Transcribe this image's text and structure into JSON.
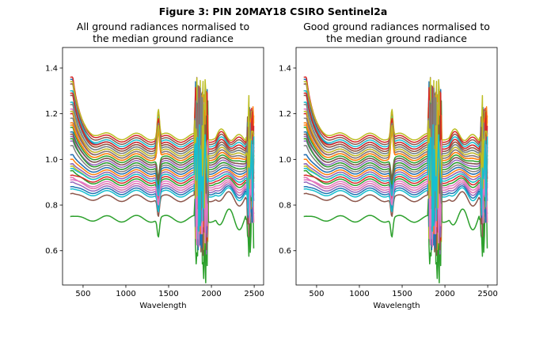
{
  "figure": {
    "title": "Figure 3: PIN 20MAY18 CSIRO Sentinel2a"
  },
  "chart_data": [
    {
      "type": "line",
      "title_lines": [
        "All ground radiances normalised to",
        "the median ground radiance"
      ],
      "xlabel": "Wavelength",
      "ylabel": "",
      "xlim": [
        260,
        2610
      ],
      "ylim": [
        0.45,
        1.49
      ],
      "xticks": [
        500,
        1000,
        1500,
        2000,
        2500
      ],
      "yticks": [
        0.6,
        0.8,
        1.0,
        1.2,
        1.4
      ],
      "grid": false,
      "legend": "none",
      "wavelength_range": [
        350,
        2500
      ],
      "bad_bands": [
        [
          1350,
          1410
        ],
        [
          1800,
          1960
        ],
        [
          2400,
          2500
        ]
      ],
      "series_count": 40,
      "series_offsets": [
        1.06,
        1.05,
        0.74,
        1.02,
        0.97,
        1.08,
        0.95,
        0.93,
        0.88,
        1.04,
        0.99,
        1.01,
        0.9,
        1.09,
        0.87,
        0.83,
        1.03,
        0.96,
        0.92,
        1.07,
        0.86,
        0.94,
        1.0,
        0.91,
        0.98,
        1.05,
        0.89,
        1.02,
        1.1,
        0.85,
        0.95,
        1.01,
        0.97,
        1.06,
        0.93,
        0.99,
        0.88,
        1.04,
        1.03,
        0.92
      ],
      "series_blue_peak": [
        1.35,
        1.3,
        0.75,
        1.2,
        1.1,
        1.33,
        1.02,
        0.98,
        0.92,
        1.25,
        1.12,
        1.16,
        0.95,
        1.36,
        0.9,
        0.85,
        1.22,
        1.06,
        0.97,
        1.3,
        0.88,
        1.0,
        1.14,
        0.93,
        1.08,
        1.28,
        0.91,
        1.18,
        1.34,
        0.87,
        1.02,
        1.15,
        1.09,
        1.29,
        0.98,
        1.11,
        0.92,
        1.24,
        1.21,
        0.96
      ]
    },
    {
      "type": "line",
      "title_lines": [
        "Good ground radiances normalised to",
        "the median ground radiance"
      ],
      "xlabel": "Wavelength",
      "ylabel": "",
      "xlim": [
        260,
        2610
      ],
      "ylim": [
        0.45,
        1.49
      ],
      "xticks": [
        500,
        1000,
        1500,
        2000,
        2500
      ],
      "yticks": [
        0.6,
        0.8,
        1.0,
        1.2,
        1.4
      ],
      "grid": false,
      "legend": "none",
      "wavelength_range": [
        350,
        2500
      ],
      "bad_bands": [
        [
          1350,
          1410
        ],
        [
          1800,
          1960
        ],
        [
          2400,
          2500
        ]
      ],
      "series_count": 40,
      "series_offsets": [
        1.06,
        1.05,
        0.74,
        1.02,
        0.97,
        1.08,
        0.95,
        0.93,
        0.88,
        1.04,
        0.99,
        1.01,
        0.9,
        1.09,
        0.87,
        0.83,
        1.03,
        0.96,
        0.92,
        1.07,
        0.86,
        0.94,
        1.0,
        0.91,
        0.98,
        1.05,
        0.89,
        1.02,
        1.1,
        0.85,
        0.95,
        1.01,
        0.97,
        1.06,
        0.93,
        0.99,
        0.88,
        1.04,
        1.03,
        0.92
      ],
      "series_blue_peak": [
        1.35,
        1.3,
        0.75,
        1.2,
        1.1,
        1.33,
        1.02,
        0.98,
        0.92,
        1.25,
        1.12,
        1.16,
        0.95,
        1.36,
        0.9,
        0.85,
        1.22,
        1.06,
        0.97,
        1.3,
        0.88,
        1.0,
        1.14,
        0.93,
        1.08,
        1.28,
        0.91,
        1.18,
        1.34,
        0.87,
        1.02,
        1.15,
        1.09,
        1.29,
        0.98,
        1.11,
        0.92,
        1.24,
        1.21,
        0.96
      ]
    }
  ],
  "colors": [
    "#1f77b4",
    "#ff7f0e",
    "#2ca02c",
    "#d62728",
    "#9467bd",
    "#8c564b",
    "#e377c2",
    "#7f7f7f",
    "#bcbd22",
    "#17becf"
  ]
}
